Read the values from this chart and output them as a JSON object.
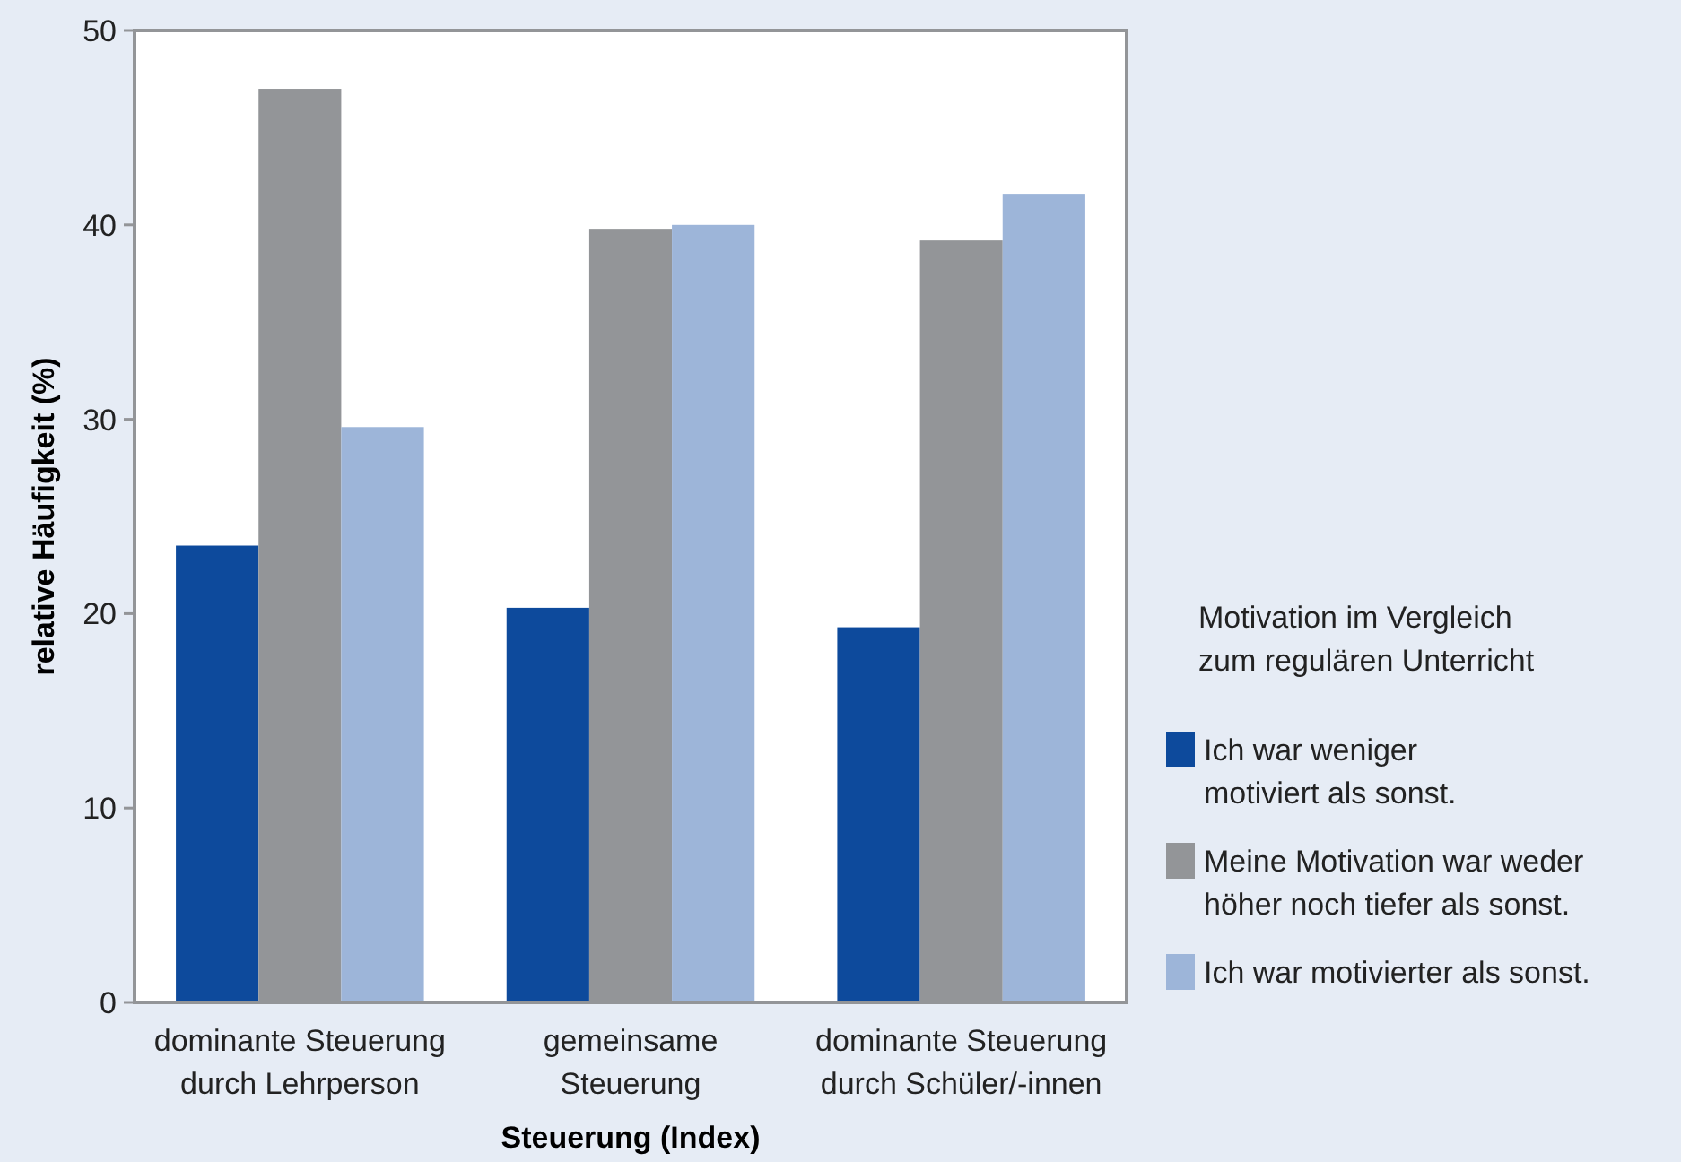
{
  "chart_data": {
    "type": "bar",
    "xlabel": "Steuerung (Index)",
    "ylabel": "relative Häufigkeit (%)",
    "legend_title": "Motivation im Vergleich\nzum regulären Unterricht",
    "categories": [
      "dominante Steuerung\ndurch Lehrperson",
      "gemeinsame\nSteuerung",
      "dominante Steuerung\ndurch Schüler/-innen"
    ],
    "series": [
      {
        "name": "Ich war weniger\nmotiviert als sonst.",
        "color": "#0d4a9c",
        "values": [
          23.5,
          20.3,
          19.3
        ]
      },
      {
        "name": "Meine Motivation war weder\nhöher noch tiefer als sonst.",
        "color": "#939598",
        "values": [
          47.0,
          39.8,
          39.2
        ]
      },
      {
        "name": "Ich war motivierter als sonst.",
        "color": "#9db5d9",
        "values": [
          29.6,
          40.0,
          41.6
        ]
      }
    ],
    "ylim": [
      0,
      50
    ],
    "yticks": [
      0,
      10,
      20,
      30,
      40,
      50
    ],
    "grid": false,
    "legend": "right"
  }
}
